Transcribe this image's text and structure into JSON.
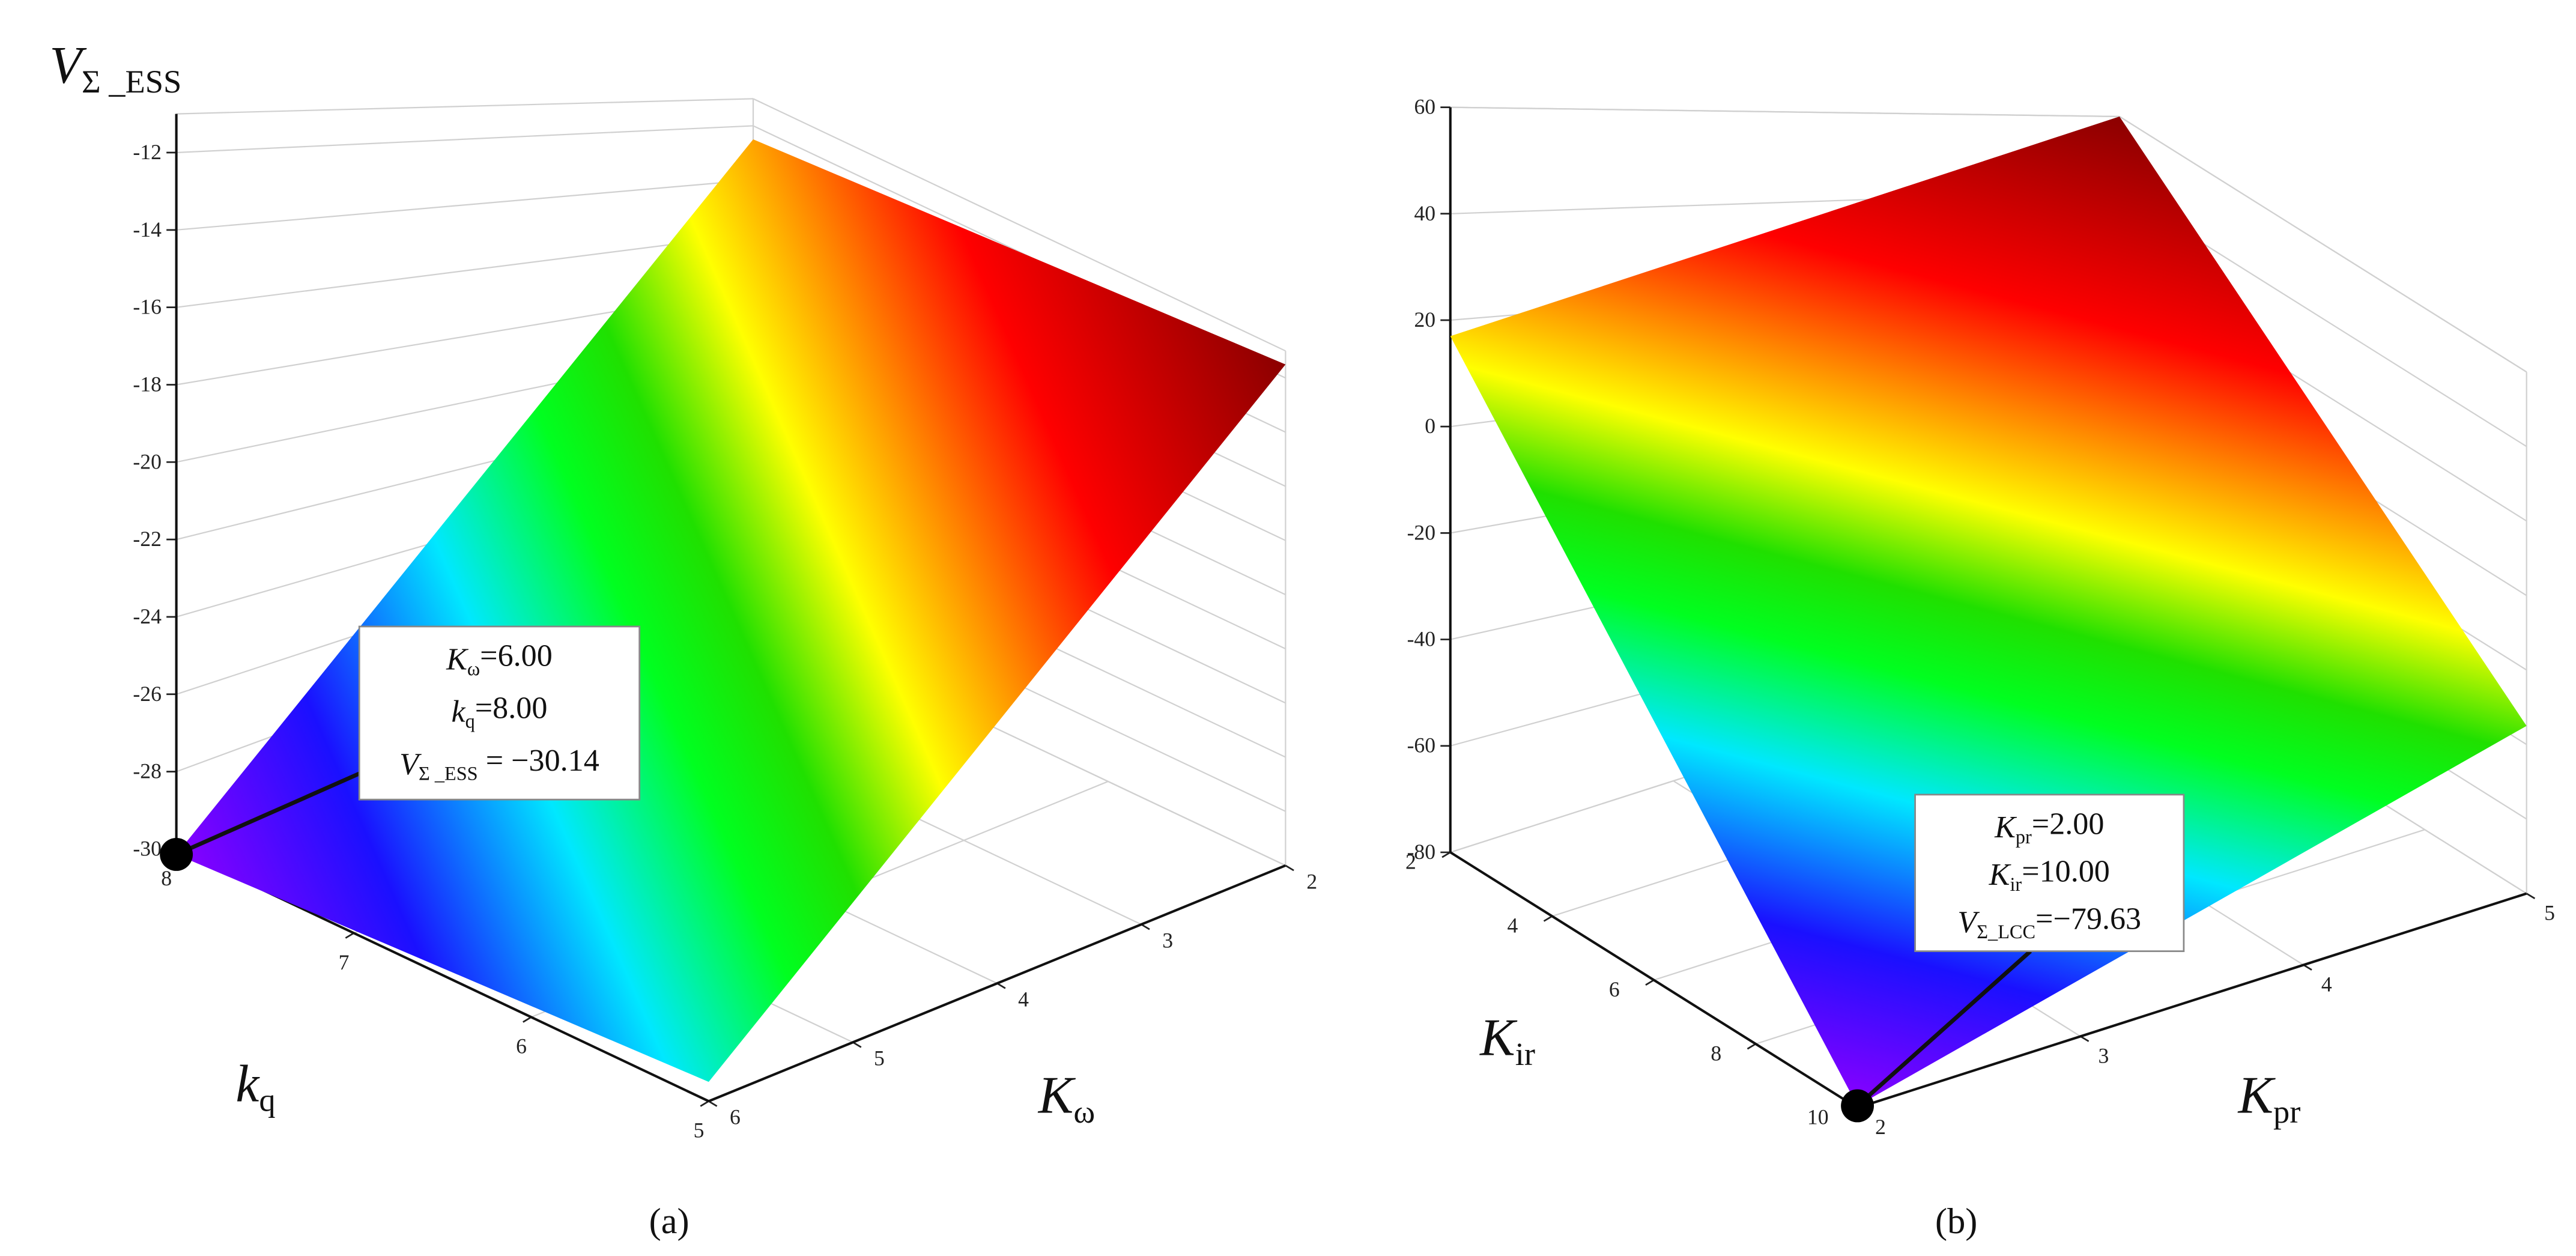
{
  "chart_data": [
    {
      "type": "surface3d",
      "panel_label": "(a)",
      "colormap": "jet",
      "x_label": {
        "main": "K",
        "sub": "ω"
      },
      "y_label": {
        "main": "k",
        "sub": "q"
      },
      "z_label": {
        "main": "V",
        "sub": "Σ _ESS"
      },
      "xlim": [
        6,
        2
      ],
      "ylim": [
        8,
        5
      ],
      "zlim": [
        -30,
        -11
      ],
      "xticks": [
        6,
        5,
        4,
        3,
        2
      ],
      "yticks": [
        8,
        7,
        6,
        5
      ],
      "zticks": [
        -30,
        -28,
        -26,
        -24,
        -22,
        -20,
        -18,
        -16,
        -14,
        -12
      ],
      "surface": {
        "x": [
          2,
          6
        ],
        "y": [
          5,
          8
        ],
        "z": [
          [
            -11.5,
            -12.5
          ],
          [
            -29.5,
            -30.14
          ]
        ]
      },
      "point": {
        "x": 6,
        "y": 8,
        "z": -30.14
      },
      "annotation": [
        {
          "main": "K",
          "sub": "ω",
          "rest": "=6.00"
        },
        {
          "main": "k",
          "sub": "q",
          "rest": "=8.00"
        },
        {
          "main": "V",
          "sub": "Σ _ESS",
          "rest": " = −30.14"
        }
      ]
    },
    {
      "type": "surface3d",
      "panel_label": "(b)",
      "colormap": "jet",
      "x_label": {
        "main": "K",
        "sub": "pr"
      },
      "y_label": {
        "main": "K",
        "sub": "ir"
      },
      "xlim": [
        2,
        5
      ],
      "ylim": [
        2,
        10
      ],
      "zlim": [
        -80,
        60
      ],
      "xticks": [
        2,
        3,
        4,
        5
      ],
      "yticks": [
        2,
        4,
        6,
        8,
        10
      ],
      "zticks": [
        -80,
        -60,
        -40,
        -20,
        0,
        20,
        40,
        60
      ],
      "surface": {
        "x": [
          2,
          5
        ],
        "y": [
          2,
          10
        ],
        "z": [
          [
            17,
            -79.63
          ],
          [
            60,
            -35
          ]
        ]
      },
      "point": {
        "x": 2,
        "y": 10,
        "z": -79.63
      },
      "annotation": [
        {
          "main": "K",
          "sub": "pr",
          "rest": "=2.00"
        },
        {
          "main": "K",
          "sub": "ir",
          "rest": "=10.00"
        },
        {
          "main": "V",
          "sub": "Σ_LCC",
          "rest": "=−79.63"
        }
      ]
    }
  ]
}
